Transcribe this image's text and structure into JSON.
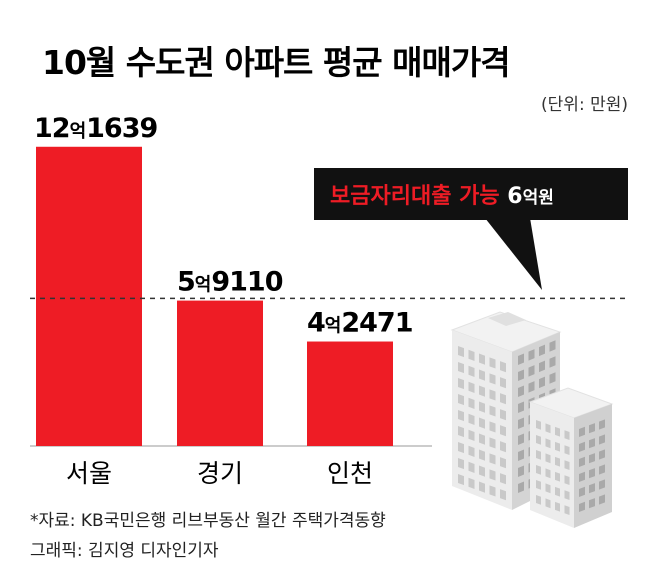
{
  "chart_data": {
    "type": "bar",
    "title": "10월 수도권 아파트 평균 매매가격",
    "unit_note": "(단위: 만원)",
    "categories": [
      "서울",
      "경기",
      "인천"
    ],
    "values": [
      121639,
      59110,
      42471
    ],
    "value_labels": [
      {
        "eok": "12",
        "eok_unit": "억",
        "rest": "1639"
      },
      {
        "eok": "5",
        "eok_unit": "억",
        "rest": "9110"
      },
      {
        "eok": "4",
        "eok_unit": "억",
        "rest": "2471"
      }
    ],
    "bar_color": "#ee1c25",
    "ylim": [
      0,
      125000
    ],
    "reference_line": {
      "value": 60000,
      "label_main": "보금자리대출 가능 ",
      "label_num": "6",
      "label_unit": "억원",
      "label_color": "#ee1c25",
      "num_color": "#ffffff",
      "box_color": "#111111"
    }
  },
  "footer": {
    "source": "*자료: KB국민은행 리브부동산 월간 주택가격동향",
    "credit": "그래픽: 김지영 디자인기자"
  }
}
